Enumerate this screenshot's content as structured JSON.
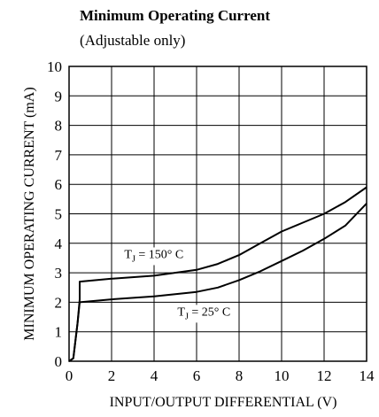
{
  "chart_data": {
    "type": "line",
    "title": "Minimum Operating Current",
    "subtitle": "(Adjustable only)",
    "xlabel": "INPUT/OUTPUT DIFFERENTIAL (V)",
    "ylabel": "MINIMUM OPERATING CURRENT (mA)",
    "xlim": [
      0,
      14
    ],
    "ylim": [
      0,
      10
    ],
    "xticks": [
      0,
      2,
      4,
      6,
      8,
      10,
      12,
      14
    ],
    "yticks": [
      0,
      1,
      2,
      3,
      4,
      5,
      6,
      7,
      8,
      9,
      10
    ],
    "grid": true,
    "series": [
      {
        "name": "TJ = 150° C",
        "points": [
          [
            0,
            0
          ],
          [
            0.2,
            0.1
          ],
          [
            0.4,
            1.3
          ],
          [
            0.5,
            2.1
          ],
          [
            0.5,
            2.7
          ],
          [
            2,
            2.8
          ],
          [
            4,
            2.9
          ],
          [
            6,
            3.1
          ],
          [
            7,
            3.3
          ],
          [
            8,
            3.6
          ],
          [
            9,
            4.0
          ],
          [
            10,
            4.4
          ],
          [
            11,
            4.7
          ],
          [
            12,
            5.0
          ],
          [
            13,
            5.4
          ],
          [
            14,
            5.9
          ]
        ]
      },
      {
        "name": "TJ = 25° C",
        "points": [
          [
            0,
            0
          ],
          [
            0.2,
            0.1
          ],
          [
            0.4,
            1.3
          ],
          [
            0.5,
            2.0
          ],
          [
            2,
            2.1
          ],
          [
            4,
            2.2
          ],
          [
            6,
            2.35
          ],
          [
            7,
            2.5
          ],
          [
            8,
            2.75
          ],
          [
            9,
            3.05
          ],
          [
            10,
            3.4
          ],
          [
            11,
            3.75
          ],
          [
            12,
            4.15
          ],
          [
            13,
            4.6
          ],
          [
            14,
            5.35
          ]
        ]
      }
    ],
    "annotations": [
      {
        "label": "T",
        "sub": "J",
        "rest": " = 150° C",
        "x": 2.6,
        "y": 3.5
      },
      {
        "label": "T",
        "sub": "J",
        "rest": " = 25° C",
        "x": 5.1,
        "y": 1.55
      }
    ]
  }
}
